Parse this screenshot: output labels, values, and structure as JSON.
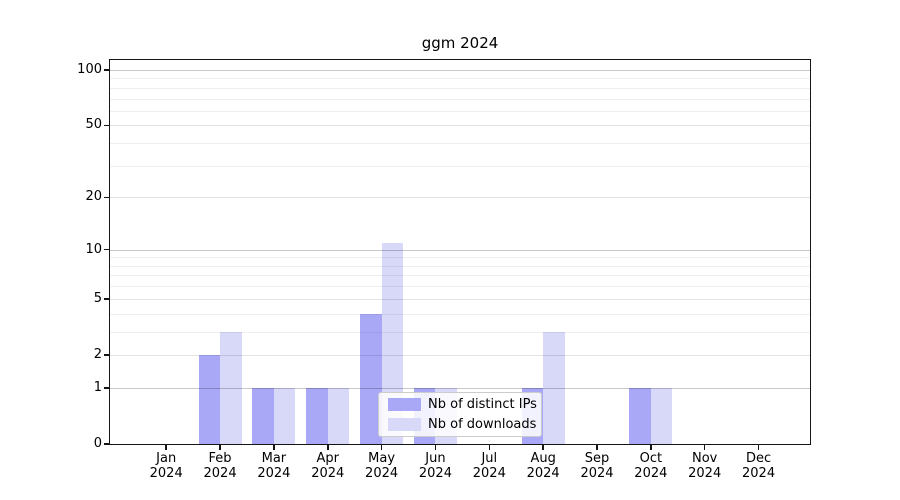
{
  "chart_data": {
    "type": "bar",
    "title": "ggm 2024",
    "categories": [
      "Jan",
      "Feb",
      "Mar",
      "Apr",
      "May",
      "Jun",
      "Jul",
      "Aug",
      "Sep",
      "Oct",
      "Nov",
      "Dec"
    ],
    "category_year": "2024",
    "series": [
      {
        "name": "Nb of distinct IPs",
        "color": "#a8a8f7",
        "values": [
          0,
          2,
          1,
          1,
          4,
          1,
          0,
          1,
          0,
          1,
          0,
          0
        ]
      },
      {
        "name": "Nb of downloads",
        "color": "#d8d8f9",
        "values": [
          0,
          3,
          1,
          1,
          11,
          1,
          0,
          3,
          0,
          1,
          0,
          0
        ]
      }
    ],
    "xlabel": "",
    "ylabel": "",
    "yscale": "log1p",
    "ylim": [
      0,
      113
    ],
    "yticks_major": [
      0,
      1,
      2,
      5,
      10,
      20,
      50,
      100
    ],
    "yticks_minor": [
      3,
      4,
      6,
      7,
      8,
      9,
      30,
      40,
      60,
      70,
      80,
      90
    ],
    "grid": "horizontal",
    "legend_position": "inside-bottom-center",
    "colors": {
      "background": "#ffffff",
      "axis": "#151515",
      "grid_decade": "rgba(0,0,0,0.215)",
      "grid_major": "rgba(0,0,0,0.11)",
      "grid_minor": "rgba(0,0,0,0.063)"
    }
  }
}
